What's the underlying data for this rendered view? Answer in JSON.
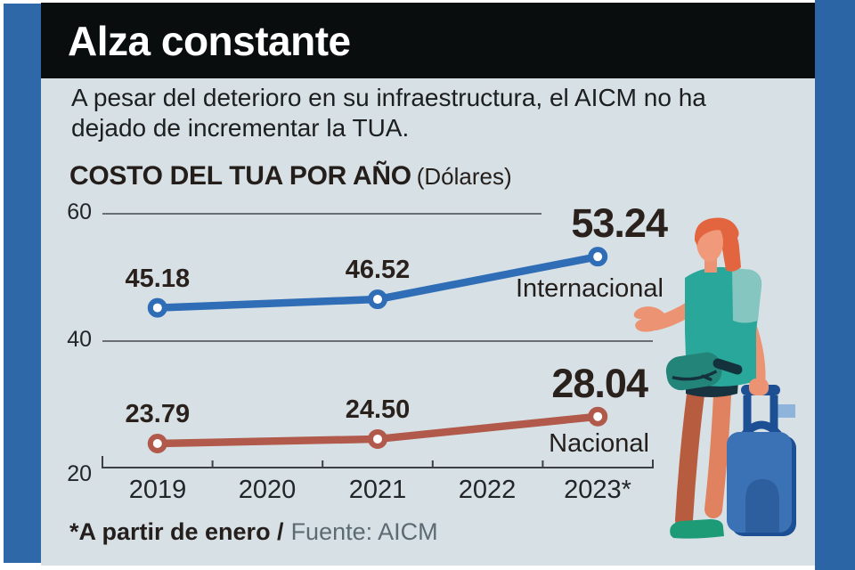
{
  "header": {
    "title": "Alza constante"
  },
  "intro": {
    "text": "A pesar del deterioro en su infraestructura, el AICM no ha dejado de incrementar la TUA."
  },
  "chart_data": {
    "type": "line",
    "title": "COSTO DEL TUA POR AÑO",
    "unit_label": "(Dólares)",
    "categories": [
      "2019",
      "2020",
      "2021",
      "2022",
      "2023*"
    ],
    "y_ticks": [
      "60",
      "40",
      "20"
    ],
    "ylim": [
      20,
      60
    ],
    "grid": true,
    "legend_position": "inline-right",
    "series": [
      {
        "name": "Internacional",
        "color": "#2f6db6",
        "category_indexes": [
          0,
          2,
          4
        ],
        "values": [
          45.18,
          46.52,
          53.24
        ],
        "labels": [
          "45.18",
          "46.52",
          "53.24"
        ]
      },
      {
        "name": "Nacional",
        "color": "#b1594a",
        "category_indexes": [
          0,
          2,
          4
        ],
        "values": [
          23.79,
          24.5,
          28.04
        ],
        "labels": [
          "23.79",
          "24.50",
          "28.04"
        ]
      }
    ]
  },
  "footnote": {
    "note": "*A partir de enero /",
    "source": "Fuente: AICM"
  },
  "illustration": {
    "name": "traveler-with-suitcase"
  },
  "colors": {
    "frame_blue": "#2e68a9",
    "card_background": "#d7e0e5",
    "headline_bar": "#0a0d0e",
    "grid_line": "#45494c",
    "internacional_line": "#2f6db6",
    "nacional_line": "#b1594a"
  }
}
